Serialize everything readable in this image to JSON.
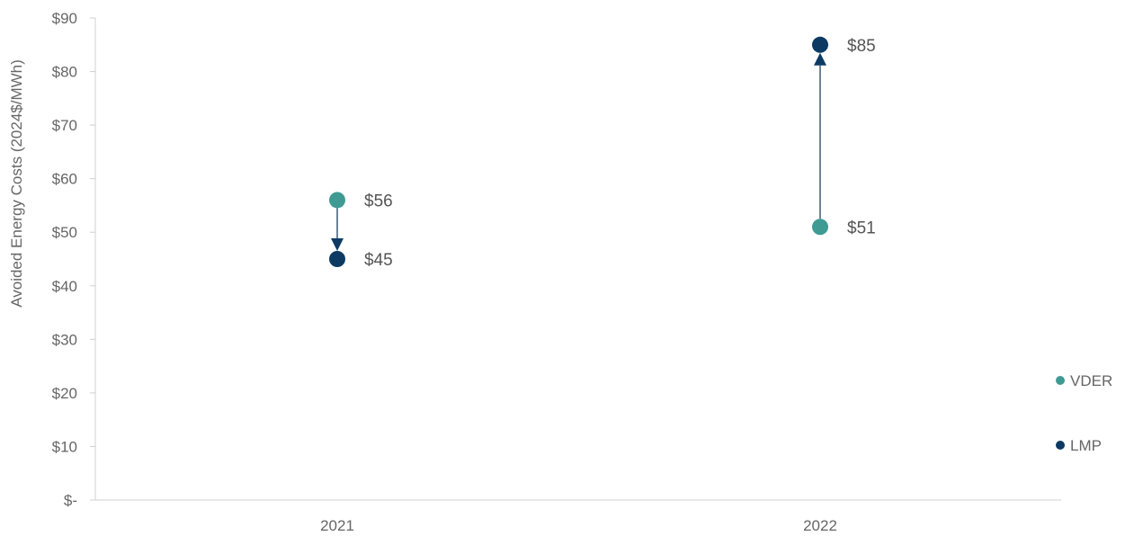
{
  "chart_data": {
    "type": "scatter",
    "title": "",
    "xlabel": "",
    "ylabel": "Avoided Energy Costs (2024$/MWh)",
    "ylim": [
      0,
      90
    ],
    "yticks": [
      0,
      10,
      20,
      30,
      40,
      50,
      60,
      70,
      80,
      90
    ],
    "ytick_labels": [
      "$-",
      "$10",
      "$20",
      "$30",
      "$40",
      "$50",
      "$60",
      "$70",
      "$80",
      "$90"
    ],
    "categories": [
      "2021",
      "2022"
    ],
    "series": [
      {
        "name": "VDER",
        "color": "#3F9A94",
        "values": [
          56,
          51
        ],
        "labels": [
          "$56",
          "$51"
        ]
      },
      {
        "name": "LMP",
        "color": "#0D3A63",
        "values": [
          45,
          85
        ],
        "labels": [
          "$45",
          "$85"
        ]
      }
    ],
    "arrows": [
      {
        "category": "2021",
        "from": 56,
        "to": 45
      },
      {
        "category": "2022",
        "from": 51,
        "to": 85
      }
    ],
    "grid": false,
    "legend": "right"
  }
}
